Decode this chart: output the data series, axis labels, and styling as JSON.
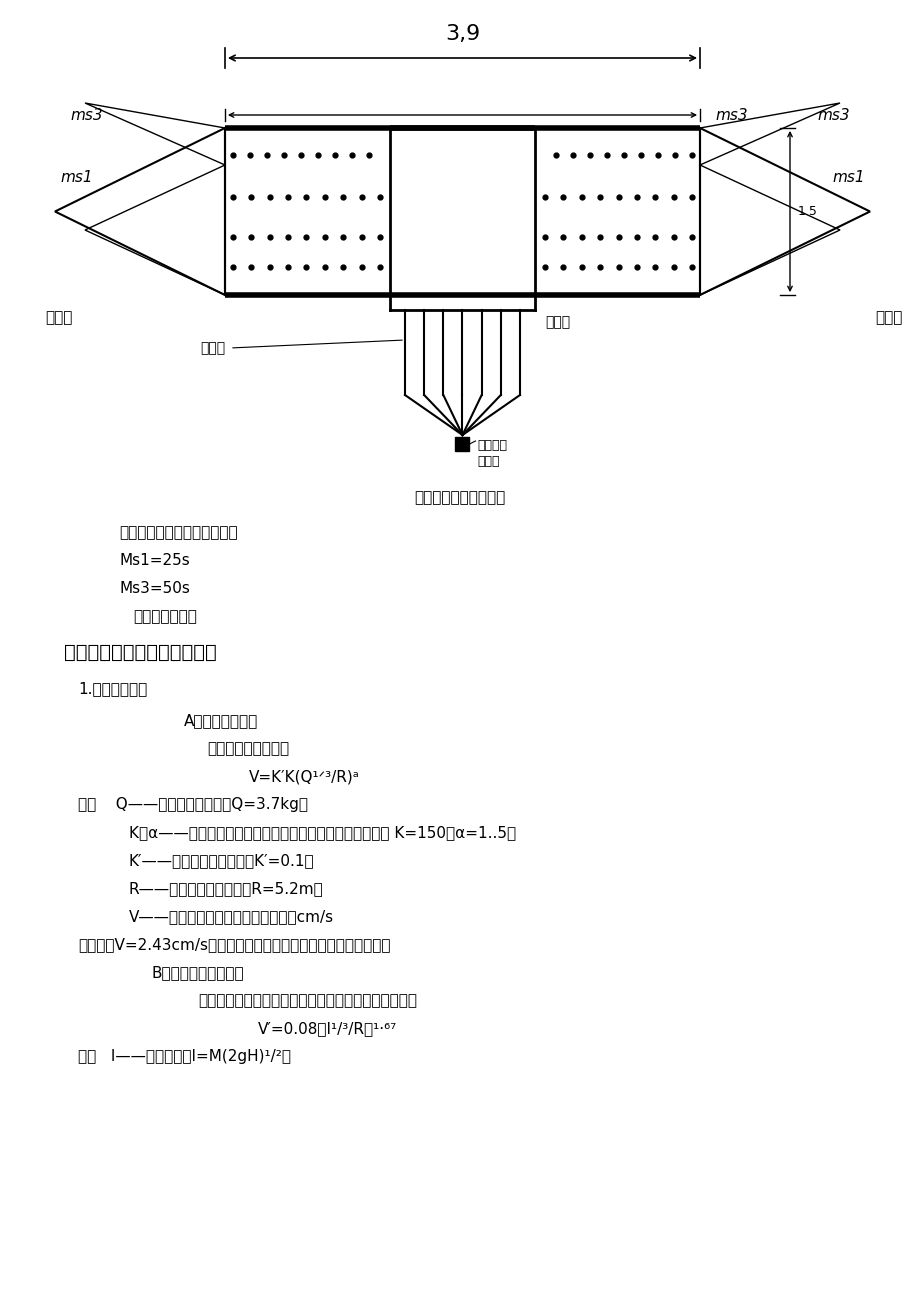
{
  "bg_color": "#ffffff",
  "fig_caption": "图三：起爆网路连接图",
  "dim_label": "3,9",
  "ms3_label": "ms3",
  "ms1_label": "ms1",
  "label_15": "1.5",
  "label_dingxiangkou": "定向口",
  "label_dingxiangchuang": "定向窗",
  "label_daobao": "导爆管",
  "label_cidian1": "磁电雷管",
  "label_cidian2": "激发点",
  "text_block": [
    {
      "indent": 0.13,
      "text": "炮孔与炮孔之间用导爆索连接",
      "size": 11,
      "bold": false
    },
    {
      "indent": 0.13,
      "text": "Ms1=25s",
      "size": 11,
      "bold": false
    },
    {
      "indent": 0.13,
      "text": "Ms3=50s",
      "size": 11,
      "bold": false
    },
    {
      "indent": 0.145,
      "text": "分别为起爆时间",
      "size": 11,
      "bold": false
    },
    {
      "indent": 0.07,
      "text": "四、爆破安全设计和防护措施",
      "size": 14,
      "bold": true
    },
    {
      "indent": 0.085,
      "text": "1.爆破安全设计",
      "size": 11,
      "bold": false
    },
    {
      "indent": 0.2,
      "text": "A．爆破震动校核",
      "size": 11,
      "bold": false
    },
    {
      "indent": 0.225,
      "text": "根据萨道夫斯基公式",
      "size": 11,
      "bold": false
    },
    {
      "indent": 0.27,
      "text": "V=K′K(Q¹ᐟ³/R)ᵃ",
      "size": 11,
      "bold": false
    },
    {
      "indent": 0.085,
      "text": "式中    Q——单段最大装药量，Q=3.7kg；",
      "size": 11,
      "bold": false
    },
    {
      "indent": 0.14,
      "text": "K、α——与地形地质条件有关的系数与衰减指数，本工程中 K=150，α=1..5；",
      "size": 11,
      "bold": false
    },
    {
      "indent": 0.14,
      "text": "K′——爆破拆除修正系数，K′=0.1；",
      "size": 11,
      "bold": false
    },
    {
      "indent": 0.14,
      "text": "R——爆心与建筑物距离，R=5.2m；",
      "size": 11,
      "bold": false
    },
    {
      "indent": 0.14,
      "text": "V——爆破引起的质点垂直震动速度，cm/s",
      "size": 11,
      "bold": false
    },
    {
      "indent": 0.085,
      "text": "经计算，V=2.43cm/s，对距爆点近来的建筑物不会产生不良影响。",
      "size": 11,
      "bold": false
    },
    {
      "indent": 0.165,
      "text": "B．烟囱塌落振动校核",
      "size": 11,
      "bold": false
    },
    {
      "indent": 0.215,
      "text": "根据中科院工程力学所提供的塌落振动速度公式计算：",
      "size": 11,
      "bold": false
    },
    {
      "indent": 0.28,
      "text": "V′=0.08（I¹/³/R）¹·⁶⁷",
      "size": 11,
      "bold": false
    },
    {
      "indent": 0.085,
      "text": "式中   I——触地冲量，I=M(2gH)¹/²；",
      "size": 11,
      "bold": false
    }
  ]
}
